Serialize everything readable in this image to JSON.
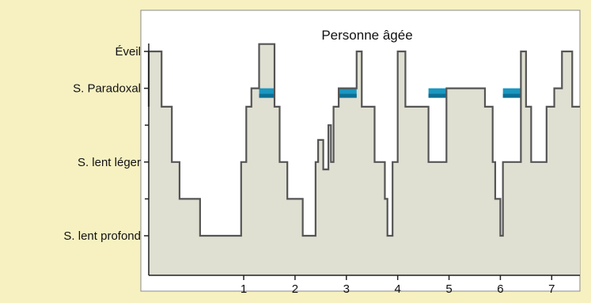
{
  "chart_data": {
    "type": "line",
    "title": "Personne âgée",
    "xlabel": "",
    "ylabel": "",
    "xlim": [
      -0.85,
      7.55
    ],
    "ylim": [
      0,
      5
    ],
    "x_ticks": [
      1,
      2,
      3,
      4,
      5,
      6,
      7
    ],
    "y_ticks": [
      {
        "label": "Éveil",
        "value": 5
      },
      {
        "label": "S. Paradoxal",
        "value": 4
      },
      {
        "label": "S. lent léger",
        "value": 2
      },
      {
        "label": "S. lent profond",
        "value": 0
      }
    ],
    "y_minor_ticks": [
      3,
      1
    ],
    "grid": false,
    "legend": "none",
    "colors": {
      "background": "#f7f1c2",
      "plot_area": "#ffffff",
      "fill": "#dfdfd2",
      "line": "#555555",
      "paradoxal": "#1a97c0",
      "paradoxal_dark": "#0d6f94",
      "axis": "#222222",
      "frame": "#8a8a8a"
    },
    "series": [
      {
        "x": [
          -0.85,
          -0.85,
          -0.6,
          -0.6,
          -0.4,
          -0.4,
          -0.25,
          -0.25,
          0.15,
          0.15,
          0.95,
          0.95,
          1.05,
          1.05,
          1.15,
          1.15,
          1.3,
          1.3,
          1.6,
          1.6,
          1.7,
          1.7,
          1.85,
          1.85,
          2.15,
          2.15,
          2.4,
          2.4,
          2.45,
          2.45,
          2.55,
          2.55,
          2.65,
          2.65,
          2.7,
          2.7,
          2.75,
          2.75,
          2.85,
          2.85,
          3.2,
          3.2,
          3.3,
          3.3,
          3.55,
          3.55,
          3.75,
          3.75,
          3.8,
          3.8,
          3.9,
          3.9,
          4.0,
          4.0,
          4.15,
          4.15,
          4.6,
          4.6,
          4.95,
          4.95,
          5.7,
          5.7,
          5.85,
          5.85,
          5.9,
          5.9,
          6.0,
          6.0,
          6.05,
          6.05,
          6.4,
          6.4,
          6.5,
          6.5,
          6.6,
          6.6,
          6.9,
          6.9,
          7.05,
          7.05,
          7.2,
          7.2,
          7.4,
          7.4,
          7.55
        ],
        "y": [
          3.5,
          5.0,
          5.0,
          3.5,
          3.5,
          2.0,
          2.0,
          1.0,
          1.0,
          0.0,
          0.0,
          2.0,
          2.0,
          3.5,
          3.5,
          4.0,
          4.0,
          5.2,
          5.2,
          3.5,
          3.5,
          2.0,
          2.0,
          1.0,
          1.0,
          0.0,
          0.0,
          2.0,
          2.0,
          2.6,
          2.6,
          1.8,
          1.8,
          3.0,
          3.0,
          2.0,
          2.0,
          3.5,
          3.5,
          4.0,
          4.0,
          5.0,
          5.0,
          3.5,
          3.5,
          2.0,
          2.0,
          1.0,
          1.0,
          0.0,
          0.0,
          2.0,
          2.0,
          5.0,
          5.0,
          3.5,
          3.5,
          2.0,
          2.0,
          4.0,
          4.0,
          3.5,
          3.5,
          2.0,
          2.0,
          1.0,
          1.0,
          0.0,
          0.0,
          2.0,
          2.0,
          5.0,
          5.0,
          3.5,
          3.5,
          2.0,
          2.0,
          3.5,
          3.5,
          4.0,
          4.0,
          5.0,
          5.0,
          3.5,
          3.5
        ]
      }
    ],
    "paradoxal_segments": [
      {
        "x0": 1.3,
        "x1": 1.6
      },
      {
        "x0": 2.85,
        "x1": 3.2
      },
      {
        "x0": 4.6,
        "x1": 4.95
      },
      {
        "x0": 6.05,
        "x1": 6.4
      }
    ]
  }
}
